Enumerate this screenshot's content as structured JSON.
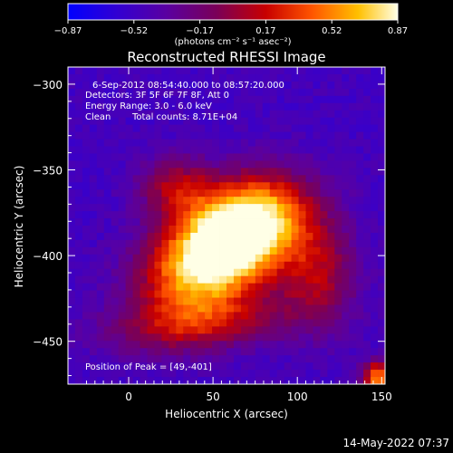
{
  "chart_data": {
    "type": "heatmap",
    "title": "Reconstructed RHESSI Image",
    "xlabel": "Heliocentric X (arcsec)",
    "ylabel": "Heliocentric Y (arcsec)",
    "xlim": [
      -36,
      152
    ],
    "ylim": [
      -475,
      -290
    ],
    "x_ticks": [
      "0",
      "50",
      "100",
      "150"
    ],
    "x_tick_values": [
      0,
      50,
      100,
      150
    ],
    "y_ticks": [
      "-300",
      "-350",
      "-400",
      "-450"
    ],
    "y_tick_values": [
      -300,
      -350,
      -400,
      -450
    ],
    "colorbar": {
      "min": -0.87,
      "max": 0.87,
      "tick_labels": [
        "−0.87",
        "−0.52",
        "−0.17",
        "0.17",
        "0.52",
        "0.87"
      ],
      "unit_label": "(photons cm⁻² s⁻¹ asec⁻²)"
    },
    "annotations": {
      "time_range": "6-Sep-2012 08:54:40.000 to 08:57:20.000",
      "detectors": "Detectors: 3F 5F 6F 7F 8F, Att 0",
      "energy_range": "Energy Range: 3.0 - 6.0 keV",
      "method": "Clean",
      "total_counts": "Total counts: 8.71E+04",
      "peak_position": "Position of Peak = [49,-401]"
    },
    "peak": {
      "x": 49,
      "y": -401,
      "value": 0.87
    },
    "background_value": -0.5,
    "sources": [
      {
        "x": 49,
        "y": -401,
        "sx": 30,
        "sy": 20,
        "amp": 1.45,
        "angle_deg": 35
      },
      {
        "x": 75,
        "y": -380,
        "sx": 24,
        "sy": 18,
        "amp": 0.95,
        "angle_deg": 20
      },
      {
        "x": 28,
        "y": -360,
        "sx": 15,
        "sy": 12,
        "amp": 0.55,
        "angle_deg": 0
      },
      {
        "x": 45,
        "y": -440,
        "sx": 38,
        "sy": 11,
        "amp": 0.5,
        "angle_deg": 5
      },
      {
        "x": 112,
        "y": -410,
        "sx": 16,
        "sy": 22,
        "amp": 0.55,
        "angle_deg": 0
      },
      {
        "x": 147,
        "y": -472,
        "sx": 6,
        "sy": 7,
        "amp": 1.05,
        "angle_deg": 0
      }
    ]
  },
  "footer": {
    "timestamp": "14-May-2022 07:37"
  }
}
